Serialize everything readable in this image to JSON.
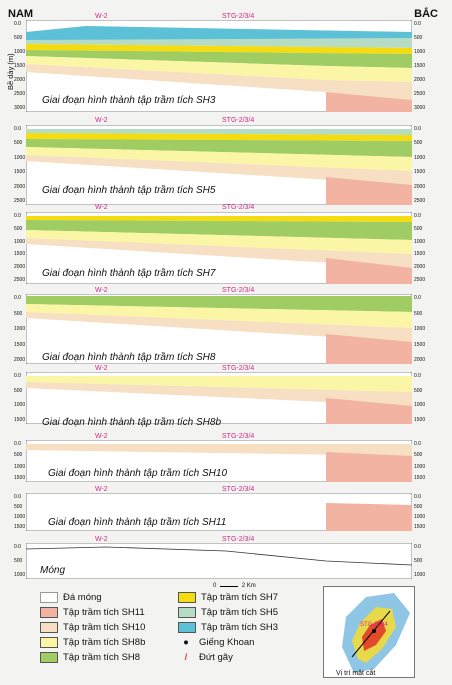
{
  "header": {
    "left": "NAM",
    "right": "BẮC"
  },
  "y_axis_label": "Bề dày (m)",
  "wells": {
    "w2": "W-2",
    "stg": "STG-2/3/4"
  },
  "panels": [
    {
      "caption": "Giai đoạn hình thành tập trầm tích SH3",
      "ticks": [
        "0.0",
        "500",
        "1000",
        "1500",
        "2000",
        "2500",
        "3000"
      ]
    },
    {
      "caption": "Giai đoạn hình thành tập trầm tích SH5",
      "ticks": [
        "0.0",
        "500",
        "1000",
        "1500",
        "2000",
        "2500"
      ]
    },
    {
      "caption": "Giai đoạn hình thành tập trầm tích SH7",
      "ticks": [
        "0.0",
        "500",
        "1000",
        "1500",
        "2000",
        "2500"
      ]
    },
    {
      "caption": "Giai đoạn hình thành tập trầm tích SH8",
      "ticks": [
        "0.0",
        "500",
        "1000",
        "1500",
        "2000"
      ]
    },
    {
      "caption": "Giai đoạn hình thành tập trầm tích SH8b",
      "ticks": [
        "0.0",
        "500",
        "1000",
        "1500"
      ]
    },
    {
      "caption": "Giai đoạn hình thành tập trầm tích SH10",
      "ticks": [
        "0.0",
        "500",
        "1000",
        "1500"
      ]
    },
    {
      "caption": "Giai đoạn hình thành tập trầm tích  SH11",
      "ticks": [
        "0.0",
        "500",
        "1000",
        "1500"
      ]
    },
    {
      "caption": "Móng",
      "ticks": [
        "0.0",
        "500",
        "1000"
      ]
    }
  ],
  "legend": {
    "da_mong": "Đá móng",
    "sh11": "Tập trầm tích SH11",
    "sh10": "Tập trầm tích SH10",
    "sh8b": "Tập trầm tích SH8b",
    "sh8": "Tập trầm tích SH8",
    "sh7": "Tập trầm tích SH7",
    "sh5": "Tập trầm tích SH5",
    "sh3": "Tập trầm tích SH3",
    "gieng": "Giếng Khoan",
    "dut_gay": "Đứt gãy"
  },
  "colors": {
    "sh11": "#f3b3a3",
    "sh10": "#f6dfc2",
    "sh8b": "#fbf6a6",
    "sh8": "#9fcc63",
    "sh7": "#f4dc10",
    "sh5": "#b6dcc6",
    "sh3": "#5cc0d6",
    "fault": "#e0422a",
    "basement": "#e05a4a"
  },
  "scale": {
    "zero": "0",
    "mid": "2 Km"
  },
  "map_caption": "Vị trí mặt cắt",
  "map_label": "STG-2/3/4"
}
